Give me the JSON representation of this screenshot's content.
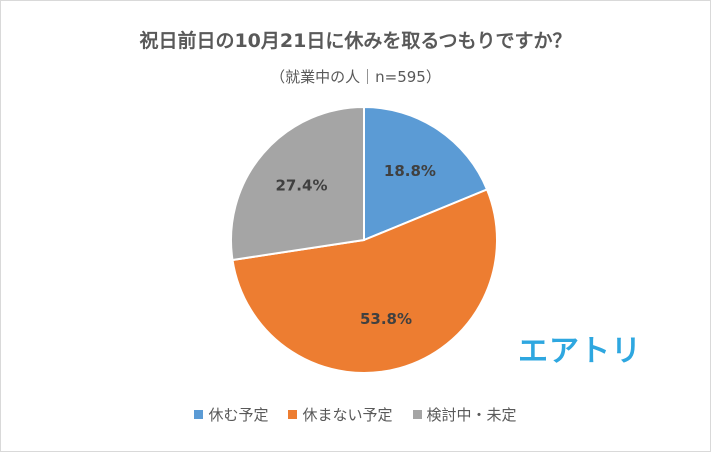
{
  "chart_data": {
    "type": "pie",
    "title": "祝日前日の10月21日に休みを取るつもりですか？",
    "subtitle": "（就業中の人｜n=595）",
    "categories": [
      "休む予定",
      "休まない予定",
      "検討中・未定"
    ],
    "values": [
      18.8,
      53.8,
      27.4
    ],
    "value_labels": [
      "18.8%",
      "53.8%",
      "27.4%"
    ],
    "colors": [
      "#5b9bd5",
      "#ed7d31",
      "#a5a5a5"
    ],
    "legend_position": "bottom"
  },
  "logo": {
    "text": "エアトリ",
    "color": "#2ea7e0"
  }
}
